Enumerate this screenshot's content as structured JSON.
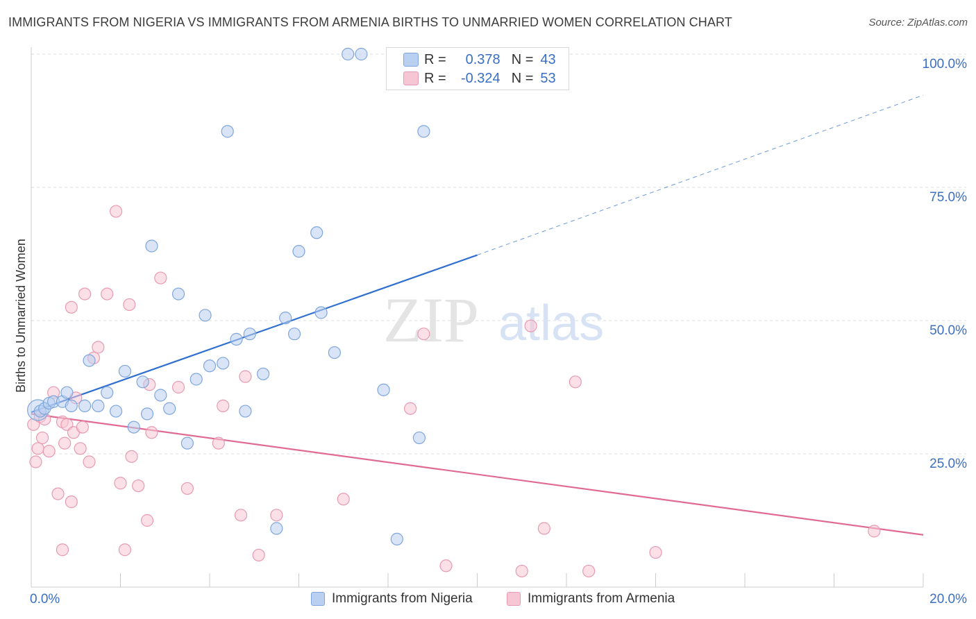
{
  "title": "IMMIGRANTS FROM NIGERIA VS IMMIGRANTS FROM ARMENIA BIRTHS TO UNMARRIED WOMEN CORRELATION CHART",
  "source": "Source: ZipAtlas.com",
  "watermark": {
    "zip": "ZIP",
    "atlas": "atlas"
  },
  "stats": {
    "nigeria": {
      "r_label": "R =",
      "r_value": "0.378",
      "n_label": "N =",
      "n_value": "43"
    },
    "armenia": {
      "r_label": "R =",
      "r_value": "-0.324",
      "n_label": "N =",
      "n_value": "53"
    }
  },
  "legend": {
    "nigeria": "Immigrants from Nigeria",
    "armenia": "Immigrants from Armenia"
  },
  "colors": {
    "nigeria_fill": "#b9d0f1",
    "nigeria_stroke": "#7ea6dd",
    "nigeria_line": "#2f6fd0",
    "armenia_fill": "#f7c6d4",
    "armenia_stroke": "#e79ab1",
    "armenia_line": "#e06a94",
    "axis_label": "#3a6fc4",
    "grid": "#dddddd"
  },
  "chart_data": {
    "type": "scatter",
    "title": "IMMIGRANTS FROM NIGERIA VS IMMIGRANTS FROM ARMENIA BIRTHS TO UNMARRIED WOMEN CORRELATION CHART",
    "xlabel": "",
    "ylabel": "Births to Unmarried Women",
    "xlim": [
      0,
      20
    ],
    "ylim": [
      0,
      100
    ],
    "x_ticks": [
      "0.0%",
      "20.0%"
    ],
    "y_ticks": [
      {
        "value": 25,
        "label": "25.0%"
      },
      {
        "value": 50,
        "label": "50.0%"
      },
      {
        "value": 75,
        "label": "75.0%"
      },
      {
        "value": 100,
        "label": "100.0%"
      }
    ],
    "grid": true,
    "legend_position": "bottom",
    "series": [
      {
        "name": "Immigrants from Nigeria",
        "points": [
          [
            0.2,
            33.0
          ],
          [
            0.3,
            33.5
          ],
          [
            0.4,
            34.5
          ],
          [
            0.5,
            34.8
          ],
          [
            0.7,
            34.8
          ],
          [
            0.8,
            36.5
          ],
          [
            0.9,
            34.0
          ],
          [
            1.2,
            34.0
          ],
          [
            1.5,
            34.0
          ],
          [
            1.3,
            42.5
          ],
          [
            1.7,
            36.5
          ],
          [
            1.9,
            33.0
          ],
          [
            2.1,
            40.5
          ],
          [
            2.3,
            30.0
          ],
          [
            2.5,
            38.5
          ],
          [
            2.6,
            32.5
          ],
          [
            2.7,
            64.0
          ],
          [
            2.9,
            36.0
          ],
          [
            3.1,
            33.5
          ],
          [
            3.3,
            55.0
          ],
          [
            3.5,
            27.0
          ],
          [
            3.7,
            39.0
          ],
          [
            3.9,
            51.0
          ],
          [
            4.0,
            41.5
          ],
          [
            4.3,
            42.0
          ],
          [
            4.4,
            85.5
          ],
          [
            4.6,
            46.5
          ],
          [
            4.8,
            33.0
          ],
          [
            4.9,
            47.5
          ],
          [
            5.2,
            40.0
          ],
          [
            5.5,
            11.0
          ],
          [
            5.7,
            50.5
          ],
          [
            5.9,
            47.5
          ],
          [
            6.0,
            63.0
          ],
          [
            6.4,
            66.5
          ],
          [
            6.5,
            51.5
          ],
          [
            6.8,
            44.0
          ],
          [
            7.1,
            100.0
          ],
          [
            7.4,
            100.0
          ],
          [
            7.9,
            37.0
          ],
          [
            8.2,
            9.0
          ],
          [
            8.7,
            28.0
          ],
          [
            8.8,
            85.5
          ]
        ],
        "trend": {
          "x": [
            0,
            10
          ],
          "y": [
            32.8,
            62.3
          ]
        },
        "trend_dashed": {
          "x": [
            10,
            20
          ],
          "y": [
            62.3,
            92.3
          ]
        }
      },
      {
        "name": "Immigrants from Armenia",
        "points": [
          [
            0.05,
            30.5
          ],
          [
            0.1,
            23.5
          ],
          [
            0.15,
            26.0
          ],
          [
            0.2,
            32.0
          ],
          [
            0.25,
            28.0
          ],
          [
            0.3,
            31.5
          ],
          [
            0.4,
            25.5
          ],
          [
            0.5,
            36.5
          ],
          [
            0.6,
            17.5
          ],
          [
            0.7,
            31.0
          ],
          [
            0.7,
            7.0
          ],
          [
            0.75,
            27.0
          ],
          [
            0.8,
            30.5
          ],
          [
            0.9,
            16.0
          ],
          [
            0.9,
            52.5
          ],
          [
            0.95,
            29.0
          ],
          [
            1.0,
            35.5
          ],
          [
            1.1,
            26.0
          ],
          [
            1.15,
            30.0
          ],
          [
            1.2,
            55.0
          ],
          [
            1.3,
            23.5
          ],
          [
            1.4,
            43.0
          ],
          [
            1.5,
            45.0
          ],
          [
            1.7,
            55.0
          ],
          [
            1.9,
            70.5
          ],
          [
            2.0,
            19.5
          ],
          [
            2.1,
            7.0
          ],
          [
            2.2,
            53.0
          ],
          [
            2.25,
            24.5
          ],
          [
            2.4,
            19.0
          ],
          [
            2.6,
            12.5
          ],
          [
            2.65,
            38.0
          ],
          [
            2.7,
            29.0
          ],
          [
            2.9,
            58.0
          ],
          [
            3.3,
            37.5
          ],
          [
            3.5,
            18.5
          ],
          [
            4.2,
            27.0
          ],
          [
            4.3,
            34.0
          ],
          [
            4.7,
            13.5
          ],
          [
            4.8,
            39.5
          ],
          [
            5.1,
            6.0
          ],
          [
            5.5,
            13.5
          ],
          [
            7.0,
            16.5
          ],
          [
            8.5,
            33.5
          ],
          [
            8.8,
            47.5
          ],
          [
            9.3,
            4.0
          ],
          [
            11.0,
            3.0
          ],
          [
            11.2,
            49.0
          ],
          [
            11.5,
            11.0
          ],
          [
            12.2,
            38.5
          ],
          [
            12.5,
            3.0
          ],
          [
            14.0,
            6.5
          ],
          [
            18.9,
            10.5
          ]
        ],
        "trend": {
          "x": [
            0,
            20
          ],
          "y": [
            32.5,
            9.8
          ]
        }
      }
    ]
  }
}
